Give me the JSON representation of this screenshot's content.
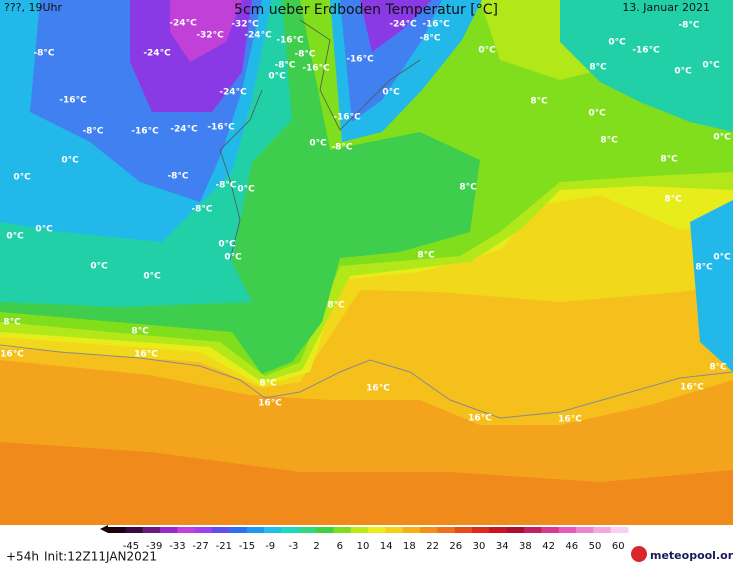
{
  "header": {
    "left": "???, 19Uhr",
    "title": "5cm ueber Erdboden Temperatur [°C]",
    "date": "13. Januar 2021"
  },
  "map_labels": [
    "-24°C",
    "-32°C",
    "-32°C",
    "-24°C",
    "-16°C",
    "-24°C",
    "-8°C",
    "-8°C",
    "-16°C",
    "-8°C",
    "0°C",
    "-24°C",
    "-16°C",
    "-8°C",
    "-16°C",
    "-24°C",
    "-16°C",
    "-24°C",
    "-16°C",
    "-8°C",
    "-16°C",
    "0°C",
    "0°C",
    "-16°C",
    "0°C",
    "-8°C",
    "8°C",
    "8°C",
    "-8°C",
    "0°C",
    "-16°C",
    "0°C",
    "0°C",
    "0°C",
    "8°C",
    "0°C",
    "8°C",
    "8°C",
    "0°C",
    "0°C",
    "-8°C",
    "-8°C",
    "0°C",
    "-8°C",
    "0°C",
    "0°C",
    "8°C",
    "0°C",
    "0°C",
    "8°C",
    "0°C",
    "0°C",
    "8°C",
    "0°C",
    "8°C",
    "8°C",
    "8°C",
    "16°C",
    "16°C",
    "8°C",
    "16°C",
    "16°C",
    "16°C",
    "16°C",
    "16°C",
    "8°C"
  ],
  "colorbar": {
    "labels": [
      -45,
      -39,
      -33,
      -27,
      -21,
      -15,
      -9,
      -3,
      2,
      6,
      10,
      14,
      18,
      22,
      26,
      30,
      34,
      38,
      42,
      46,
      50,
      60
    ]
  },
  "footer": {
    "run": "+54h",
    "init": "Init:12Z11JAN2021",
    "logo": "meteopool.org"
  }
}
